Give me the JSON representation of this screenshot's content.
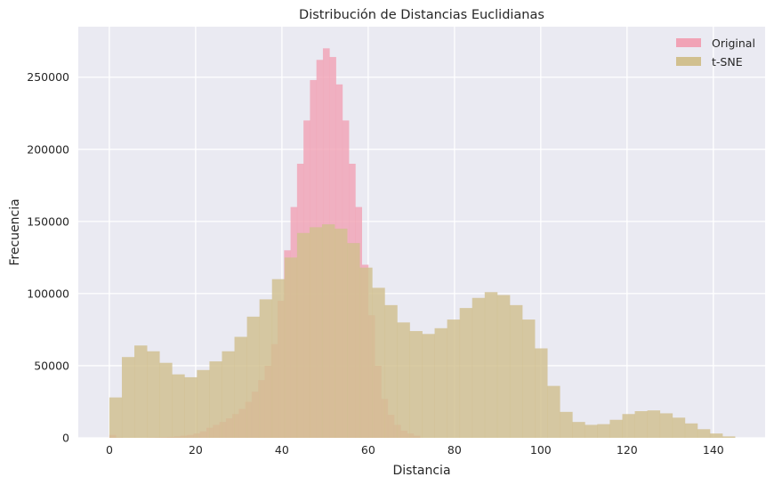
{
  "chart_data": {
    "type": "bar",
    "subtype": "histogram",
    "title": "Distribución de Distancias Euclidianas",
    "xlabel": "Distancia",
    "ylabel": "Frecuencia",
    "xlim": [
      -7.2,
      152
    ],
    "ylim": [
      0,
      285000
    ],
    "xticks": [
      0,
      20,
      40,
      60,
      80,
      100,
      120,
      140
    ],
    "yticks": [
      0,
      50000,
      100000,
      150000,
      200000,
      250000
    ],
    "grid": true,
    "legend_position": "top-right",
    "background": "#eaeaf2",
    "series": [
      {
        "name": "Original",
        "color": "#f1a3b6",
        "edges": [
          0.0,
          1.5,
          3.0,
          4.5,
          6.0,
          7.5,
          9.0,
          10.5,
          12.0,
          13.5,
          15.0,
          16.5,
          18.0,
          19.5,
          21.0,
          22.5,
          24.0,
          25.5,
          27.0,
          28.5,
          30.0,
          31.5,
          33.0,
          34.5,
          36.0,
          37.5,
          39.0,
          40.5,
          42.0,
          43.5,
          45.0,
          46.5,
          48.0,
          49.5,
          51.0,
          52.5,
          54.0,
          55.5,
          57.0,
          58.5,
          60.0,
          61.5,
          63.0,
          64.5,
          66.0,
          67.5,
          69.0,
          70.5,
          72.0
        ],
        "values": [
          2000,
          200,
          100,
          100,
          100,
          100,
          200,
          300,
          500,
          600,
          1000,
          1500,
          2000,
          3000,
          4500,
          7000,
          9000,
          11000,
          13500,
          16500,
          20000,
          25000,
          32000,
          40000,
          50000,
          65000,
          95000,
          130000,
          160000,
          190000,
          220000,
          248000,
          262000,
          270000,
          264000,
          245000,
          220000,
          190000,
          160000,
          120000,
          85000,
          50000,
          27000,
          16000,
          9000,
          5000,
          3000,
          1500
        ]
      },
      {
        "name": "t-SNE",
        "color": "#d1c08f",
        "edges": [
          0.0,
          2.9,
          5.8,
          8.7,
          11.6,
          14.5,
          17.4,
          20.3,
          23.2,
          26.1,
          29.0,
          31.9,
          34.8,
          37.7,
          40.6,
          43.5,
          46.4,
          49.3,
          52.2,
          55.1,
          58.0,
          60.9,
          63.8,
          66.7,
          69.6,
          72.5,
          75.4,
          78.3,
          81.2,
          84.1,
          87.0,
          89.9,
          92.8,
          95.7,
          98.6,
          101.5,
          104.4,
          107.3,
          110.2,
          113.1,
          116.0,
          118.9,
          121.8,
          124.7,
          127.6,
          130.5,
          133.4,
          136.3,
          139.2,
          142.1,
          145.0
        ],
        "values": [
          28000,
          56000,
          64000,
          60000,
          52000,
          44000,
          42000,
          47000,
          53000,
          60000,
          70000,
          84000,
          96000,
          110000,
          125000,
          142000,
          146000,
          148000,
          145000,
          135000,
          118000,
          104000,
          92000,
          80000,
          74000,
          72000,
          76000,
          82000,
          90000,
          97000,
          101000,
          99000,
          92000,
          82000,
          62000,
          36000,
          18000,
          11000,
          9000,
          9500,
          12500,
          16500,
          18500,
          19000,
          17000,
          14000,
          10000,
          6000,
          3000,
          1000
        ]
      }
    ]
  }
}
